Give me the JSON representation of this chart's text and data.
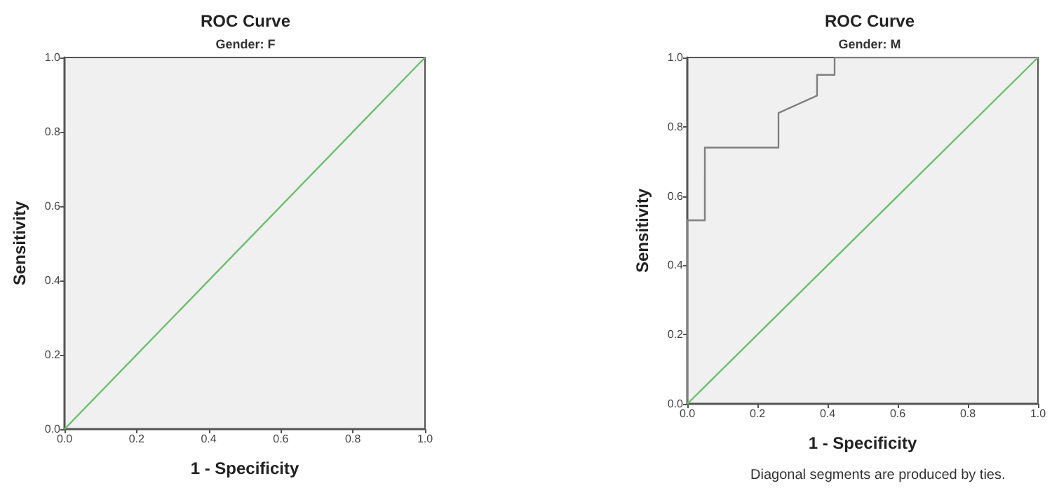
{
  "chart_data": [
    {
      "type": "line",
      "title": "ROC Curve",
      "subtitle": "Gender: F",
      "xlabel": "1 - Specificity",
      "ylabel": "Sensitivity",
      "series": [
        {
          "color": "#6cbf6c",
          "x": [
            0,
            1
          ],
          "values": [
            0,
            1
          ]
        }
      ],
      "xlim": [
        0,
        1
      ],
      "ylim": [
        0,
        1
      ],
      "xticks": [
        {
          "value": 0,
          "label": "0.0"
        },
        {
          "value": 0.2,
          "label": "0.2"
        },
        {
          "value": 0.4,
          "label": "0.4"
        },
        {
          "value": 0.6,
          "label": "0.6"
        },
        {
          "value": 0.8,
          "label": "0.8"
        },
        {
          "value": 1,
          "label": "1.0"
        }
      ],
      "yticks": [
        {
          "value": 0,
          "label": "0.0"
        },
        {
          "value": 0.2,
          "label": "0.2"
        },
        {
          "value": 0.4,
          "label": "0.4"
        },
        {
          "value": 0.6,
          "label": "0.6"
        },
        {
          "value": 0.8,
          "label": "0.8"
        },
        {
          "value": 1,
          "label": "1.0"
        }
      ],
      "grid": false,
      "marker": "none"
    },
    {
      "type": "line",
      "title": "ROC Curve",
      "subtitle": "Gender: M",
      "xlabel": "1 - Specificity",
      "ylabel": "Sensitivity",
      "annotations": [
        "Diagonal segments are produced by ties."
      ],
      "series": [
        {
          "color": "#808080",
          "x": [
            0,
            0,
            0.05,
            0.05,
            0.26,
            0.26,
            0.37,
            0.37,
            0.42,
            0.42,
            1
          ],
          "values": [
            0,
            0.53,
            0.53,
            0.74,
            0.74,
            0.84,
            0.89,
            0.95,
            0.95,
            1,
            1
          ]
        },
        {
          "color": "#6cbf6c",
          "x": [
            0,
            1
          ],
          "values": [
            0,
            1
          ]
        }
      ],
      "xlim": [
        0,
        1
      ],
      "ylim": [
        0,
        1
      ],
      "xticks": [
        {
          "value": 0,
          "label": "0.0"
        },
        {
          "value": 0.2,
          "label": "0.2"
        },
        {
          "value": 0.4,
          "label": "0.4"
        },
        {
          "value": 0.6,
          "label": "0.6"
        },
        {
          "value": 0.8,
          "label": "0.8"
        },
        {
          "value": 1,
          "label": "1.0"
        }
      ],
      "yticks": [
        {
          "value": 0,
          "label": "0.0"
        },
        {
          "value": 0.2,
          "label": "0.2"
        },
        {
          "value": 0.4,
          "label": "0.4"
        },
        {
          "value": 0.6,
          "label": "0.6"
        },
        {
          "value": 0.8,
          "label": "0.8"
        },
        {
          "value": 1,
          "label": "1.0"
        }
      ],
      "grid": false,
      "marker": "none"
    }
  ]
}
